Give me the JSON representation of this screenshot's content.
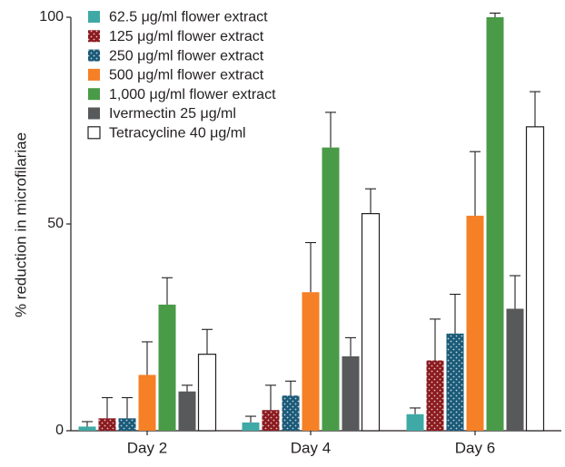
{
  "chart_data": {
    "type": "bar",
    "title": "",
    "xlabel": "",
    "ylabel": "% reduction in microfilariae",
    "ylim": [
      0,
      100
    ],
    "yticks": [
      0,
      50,
      100
    ],
    "grid": false,
    "legend_position": "top-left",
    "categories": [
      "Day 2",
      "Day 4",
      "Day 6"
    ],
    "series": [
      {
        "name": "62.5 μg/ml flower extract",
        "color": "#3fa9a5",
        "pattern": "none",
        "values": [
          1,
          2,
          4
        ],
        "errors": [
          1.2,
          1.5,
          1.5
        ]
      },
      {
        "name": "125 μg/ml flower extract",
        "color": "#8b1a1f",
        "pattern": "dots",
        "values": [
          3,
          5,
          17
        ],
        "errors": [
          5,
          6,
          10
        ]
      },
      {
        "name": "250 μg/ml flower extract",
        "color": "#1a5a78",
        "pattern": "dots",
        "values": [
          3,
          8.5,
          23.5
        ],
        "errors": [
          5,
          3.5,
          9.5
        ]
      },
      {
        "name": "500 μg/ml flower extract",
        "color": "#f58025",
        "pattern": "none",
        "values": [
          13.5,
          33.5,
          52
        ],
        "errors": [
          8,
          12,
          15.5
        ]
      },
      {
        "name": "1,000 μg/ml flower extract",
        "color": "#4a9b48",
        "pattern": "none",
        "values": [
          30.5,
          68.5,
          100
        ],
        "errors": [
          6.5,
          8.5,
          1.5
        ]
      },
      {
        "name": "Ivermectin 25 μg/ml",
        "color": "#58595b",
        "pattern": "none",
        "values": [
          9.5,
          18,
          29.5
        ],
        "errors": [
          1.5,
          4.5,
          8
        ]
      },
      {
        "name": "Tetracycline 40 μg/ml",
        "color": "#ffffff",
        "pattern": "none",
        "values": [
          18.5,
          52.5,
          73.5
        ],
        "errors": [
          6,
          6,
          8.5
        ]
      }
    ]
  }
}
